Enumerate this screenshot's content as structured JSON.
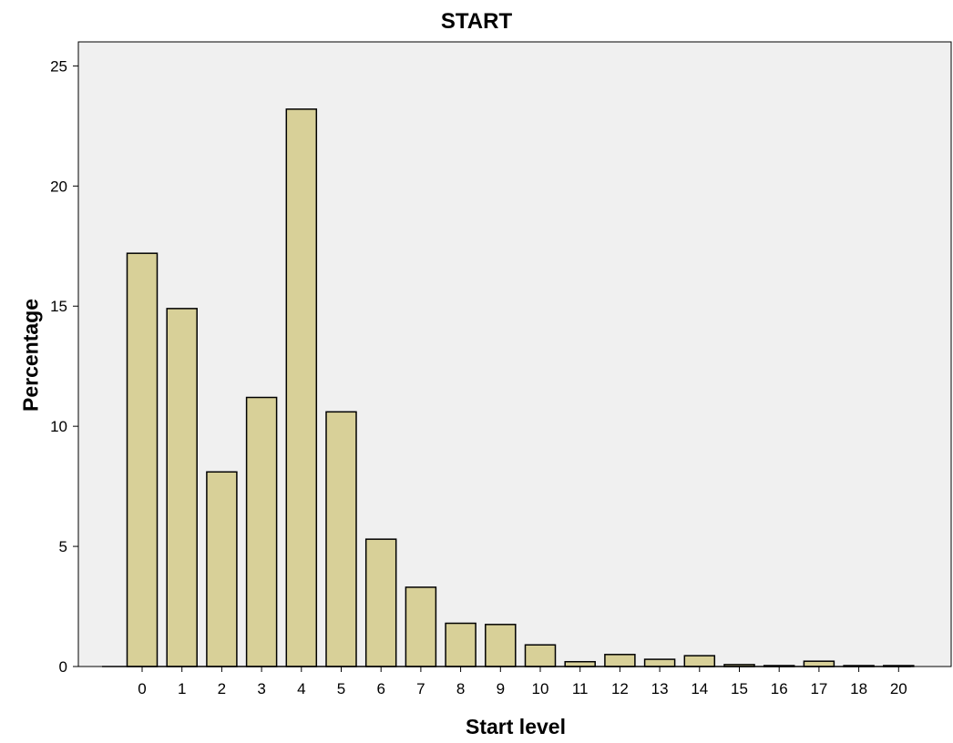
{
  "chart_data": {
    "type": "bar",
    "title": "START",
    "xlabel": "Start level",
    "ylabel": "Percentage",
    "ylim": [
      0,
      26
    ],
    "yticks": [
      0,
      5,
      10,
      15,
      20,
      25
    ],
    "grid": false,
    "categories": [
      "0",
      "1",
      "2",
      "3",
      "4",
      "5",
      "6",
      "7",
      "8",
      "9",
      "10",
      "11",
      "12",
      "13",
      "14",
      "15",
      "16",
      "17",
      "18",
      "20"
    ],
    "values": [
      17.2,
      14.9,
      8.1,
      11.2,
      23.2,
      10.6,
      5.3,
      3.3,
      1.8,
      1.75,
      0.9,
      0.2,
      0.5,
      0.3,
      0.45,
      0.08,
      0.03,
      0.22,
      0.03,
      0.03
    ],
    "colors": {
      "bar_fill": "#d8d098",
      "bar_stroke": "#000000",
      "plot_background": "#f0f0f0"
    }
  }
}
